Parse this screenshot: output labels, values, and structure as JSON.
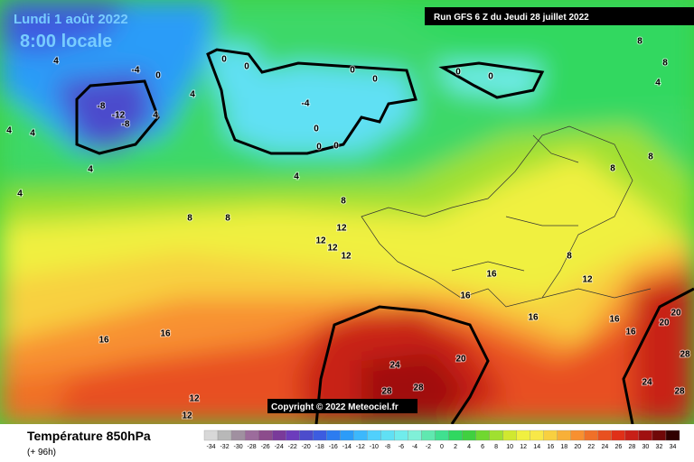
{
  "header": {
    "date": "Lundi 1 août 2022",
    "time": "8:00 locale",
    "run": "Run GFS 6 Z du Jeudi 28 juillet 2022"
  },
  "copyright": "Copyright © 2022 Meteociel.fr",
  "footer": {
    "title": "Température 850hPa",
    "subtitle": "(+ 96h)"
  },
  "contours": {
    "labels": [
      4,
      -4,
      0,
      0,
      0,
      4,
      4,
      -8,
      -12,
      -8,
      4,
      4,
      4,
      4,
      -4,
      0,
      0,
      0,
      0,
      0,
      0,
      0,
      4,
      8,
      8,
      8,
      12,
      12,
      12,
      12,
      8,
      8,
      4,
      8,
      8,
      16,
      16,
      16,
      12,
      8,
      16,
      16,
      20,
      20,
      20,
      24,
      28,
      28,
      24,
      28,
      28,
      16,
      16,
      12,
      12
    ]
  },
  "scale": {
    "ticks": [
      -34,
      -32,
      -30,
      -28,
      -26,
      -24,
      -22,
      -20,
      -18,
      -16,
      -14,
      -12,
      -10,
      -8,
      -6,
      -4,
      -2,
      0,
      2,
      4,
      6,
      8,
      10,
      12,
      14,
      16,
      18,
      20,
      22,
      24,
      26,
      28,
      30,
      32,
      34
    ],
    "colors": [
      "#d8d8d8",
      "#b8b8b8",
      "#a090a0",
      "#9c6c9c",
      "#8c4c8c",
      "#7a3a9a",
      "#6c3cbc",
      "#4c4ccc",
      "#3c5ce0",
      "#2c7cf0",
      "#2c9cf8",
      "#3cb8fc",
      "#50d0fc",
      "#60e0f4",
      "#70ecec",
      "#80f0d8",
      "#60e8b0",
      "#40e090",
      "#30d860",
      "#40d040",
      "#70d830",
      "#a0e030",
      "#d0e830",
      "#f0f040",
      "#f8e848",
      "#f8d040",
      "#f8b038",
      "#f89030",
      "#f07028",
      "#e85020",
      "#e03018",
      "#c82018",
      "#a01010",
      "#700808",
      "#300000"
    ]
  }
}
